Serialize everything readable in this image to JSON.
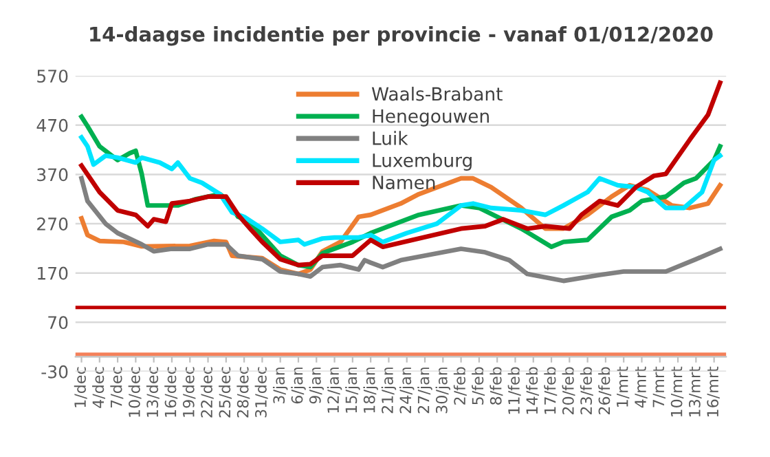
{
  "chart_data": {
    "type": "line",
    "title": "14-daagse incidentie per provincie - vanaf 01/012/2020",
    "ylim": [
      -30,
      570
    ],
    "yticks": [
      -30,
      70,
      170,
      270,
      370,
      470,
      570
    ],
    "xlim": [
      "2020-11-30",
      "2021-03-18"
    ],
    "xticks": [
      {
        "value": "2020-12-01",
        "label": "1/dec"
      },
      {
        "value": "2020-12-04",
        "label": "4/dec"
      },
      {
        "value": "2020-12-07",
        "label": "7/dec"
      },
      {
        "value": "2020-12-10",
        "label": "10/dec"
      },
      {
        "value": "2020-12-13",
        "label": "13/dec"
      },
      {
        "value": "2020-12-16",
        "label": "16/dec"
      },
      {
        "value": "2020-12-19",
        "label": "19/dec"
      },
      {
        "value": "2020-12-22",
        "label": "22/dec"
      },
      {
        "value": "2020-12-25",
        "label": "25/dec"
      },
      {
        "value": "2020-12-28",
        "label": "28/dec"
      },
      {
        "value": "2020-12-31",
        "label": "31/dec"
      },
      {
        "value": "2021-01-03",
        "label": "3/jan"
      },
      {
        "value": "2021-01-06",
        "label": "6/jan"
      },
      {
        "value": "2021-01-09",
        "label": "9/jan"
      },
      {
        "value": "2021-01-12",
        "label": "12/jan"
      },
      {
        "value": "2021-01-15",
        "label": "15/jan"
      },
      {
        "value": "2021-01-18",
        "label": "18/jan"
      },
      {
        "value": "2021-01-21",
        "label": "21/jan"
      },
      {
        "value": "2021-01-24",
        "label": "24/jan"
      },
      {
        "value": "2021-01-27",
        "label": "27/jan"
      },
      {
        "value": "2021-01-30",
        "label": "30/jan"
      },
      {
        "value": "2021-02-02",
        "label": "2/feb"
      },
      {
        "value": "2021-02-05",
        "label": "5/feb"
      },
      {
        "value": "2021-02-08",
        "label": "8/feb"
      },
      {
        "value": "2021-02-11",
        "label": "11/feb"
      },
      {
        "value": "2021-02-14",
        "label": "14/feb"
      },
      {
        "value": "2021-02-17",
        "label": "17/feb"
      },
      {
        "value": "2021-02-20",
        "label": "20/feb"
      },
      {
        "value": "2021-02-23",
        "label": "23/feb"
      },
      {
        "value": "2021-02-26",
        "label": "26/feb"
      },
      {
        "value": "2021-03-01",
        "label": "1/mrt"
      },
      {
        "value": "2021-03-04",
        "label": "4/mrt"
      },
      {
        "value": "2021-03-07",
        "label": "7/mrt"
      },
      {
        "value": "2021-03-10",
        "label": "10/mrt"
      },
      {
        "value": "2021-03-13",
        "label": "13/mrt"
      },
      {
        "value": "2021-03-16",
        "label": "16/mrt"
      }
    ],
    "grid": "y",
    "legend": "top",
    "marker": "none",
    "line_style": "solid",
    "ref_lines": [
      {
        "axis": "y",
        "value": 100,
        "color": "#c00000"
      },
      {
        "axis": "y",
        "value": 5,
        "color": "#f4805a"
      }
    ],
    "series": [
      {
        "name": "Waals-Brabant",
        "color": "#ed7d31",
        "x": [
          "2020-12-01",
          "2020-12-02",
          "2020-12-04",
          "2020-12-08",
          "2020-12-11",
          "2020-12-19",
          "2020-12-23",
          "2020-12-25",
          "2020-12-26",
          "2020-12-31",
          "2021-01-03",
          "2021-01-06",
          "2021-01-08",
          "2021-01-10",
          "2021-01-13",
          "2021-01-16",
          "2021-01-18",
          "2021-01-23",
          "2021-01-26",
          "2021-02-02",
          "2021-02-04",
          "2021-02-07",
          "2021-02-12",
          "2021-02-16",
          "2021-02-19",
          "2021-02-23",
          "2021-02-27",
          "2021-03-02",
          "2021-03-05",
          "2021-03-09",
          "2021-03-12",
          "2021-03-15",
          "2021-03-17"
        ],
        "values": [
          281,
          247,
          235,
          233,
          224,
          225,
          235,
          233,
          205,
          200,
          177,
          168,
          177,
          214,
          233,
          284,
          288,
          311,
          330,
          362,
          362,
          344,
          302,
          260,
          260,
          288,
          325,
          348,
          338,
          307,
          302,
          311,
          348
        ]
      },
      {
        "name": "Henegouwen",
        "color": "#00b050",
        "x": [
          "2020-12-01",
          "2020-12-02",
          "2020-12-04",
          "2020-12-07",
          "2020-12-09",
          "2020-12-10",
          "2020-12-11",
          "2020-12-12",
          "2020-12-17",
          "2020-12-20",
          "2020-12-24",
          "2020-12-25",
          "2020-12-27",
          "2020-12-29",
          "2021-01-03",
          "2021-01-06",
          "2021-01-08",
          "2021-01-10",
          "2021-01-15",
          "2021-01-18",
          "2021-01-26",
          "2021-02-02",
          "2021-02-05",
          "2021-02-08",
          "2021-02-12",
          "2021-02-17",
          "2021-02-19",
          "2021-02-23",
          "2021-02-27",
          "2021-03-02",
          "2021-03-04",
          "2021-03-08",
          "2021-03-11",
          "2021-03-13",
          "2021-03-16",
          "2021-03-17"
        ],
        "values": [
          487,
          468,
          427,
          399,
          413,
          418,
          371,
          307,
          307,
          320,
          330,
          320,
          284,
          274,
          205,
          186,
          182,
          210,
          233,
          251,
          288,
          307,
          302,
          284,
          260,
          223,
          233,
          237,
          284,
          297,
          316,
          325,
          353,
          362,
          399,
          427
        ]
      },
      {
        "name": "Luik",
        "color": "#808080",
        "x": [
          "2020-12-01",
          "2020-12-02",
          "2020-12-05",
          "2020-12-07",
          "2020-12-11",
          "2020-12-13",
          "2020-12-16",
          "2020-12-19",
          "2020-12-22",
          "2020-12-25",
          "2020-12-27",
          "2020-12-31",
          "2021-01-03",
          "2021-01-06",
          "2021-01-08",
          "2021-01-10",
          "2021-01-13",
          "2021-01-16",
          "2021-01-17",
          "2021-01-18",
          "2021-01-20",
          "2021-01-23",
          "2021-02-02",
          "2021-02-06",
          "2021-02-10",
          "2021-02-13",
          "2021-02-19",
          "2021-02-25",
          "2021-03-01",
          "2021-03-08",
          "2021-03-13",
          "2021-03-17"
        ],
        "values": [
          362,
          316,
          270,
          251,
          228,
          214,
          219,
          219,
          228,
          228,
          205,
          198,
          173,
          168,
          163,
          182,
          186,
          177,
          196,
          191,
          182,
          196,
          219,
          212,
          196,
          168,
          154,
          166,
          173,
          173,
          198,
          219
        ]
      },
      {
        "name": "Luxemburg",
        "color": "#00e5ff",
        "x": [
          "2020-12-01",
          "2020-12-02",
          "2020-12-03",
          "2020-12-05",
          "2020-12-07",
          "2020-12-10",
          "2020-12-11",
          "2020-12-14",
          "2020-12-16",
          "2020-12-17",
          "2020-12-19",
          "2020-12-21",
          "2020-12-24",
          "2020-12-26",
          "2020-12-28",
          "2020-12-31",
          "2021-01-03",
          "2021-01-06",
          "2021-01-07",
          "2021-01-10",
          "2021-01-12",
          "2021-01-16",
          "2021-01-18",
          "2021-01-20",
          "2021-01-24",
          "2021-01-29",
          "2021-02-02",
          "2021-02-04",
          "2021-02-07",
          "2021-02-12",
          "2021-02-16",
          "2021-02-19",
          "2021-02-23",
          "2021-02-25",
          "2021-02-28",
          "2021-03-03",
          "2021-03-05",
          "2021-03-08",
          "2021-03-11",
          "2021-03-14",
          "2021-03-16",
          "2021-03-17"
        ],
        "values": [
          445,
          427,
          390,
          408,
          404,
          394,
          404,
          394,
          381,
          394,
          362,
          353,
          330,
          293,
          284,
          260,
          233,
          237,
          228,
          240,
          242,
          242,
          247,
          233,
          251,
          270,
          307,
          311,
          302,
          297,
          288,
          307,
          334,
          362,
          348,
          344,
          334,
          302,
          302,
          334,
          399,
          408
        ]
      },
      {
        "name": "Namen",
        "color": "#c00000",
        "x": [
          "2020-12-01",
          "2020-12-04",
          "2020-12-07",
          "2020-12-10",
          "2020-12-12",
          "2020-12-13",
          "2020-12-15",
          "2020-12-16",
          "2020-12-19",
          "2020-12-22",
          "2020-12-25",
          "2020-12-27",
          "2020-12-29",
          "2020-12-31",
          "2021-01-03",
          "2021-01-06",
          "2021-01-08",
          "2021-01-10",
          "2021-01-15",
          "2021-01-18",
          "2021-01-20",
          "2021-01-26",
          "2021-02-02",
          "2021-02-06",
          "2021-02-09",
          "2021-02-13",
          "2021-02-16",
          "2021-02-20",
          "2021-02-22",
          "2021-02-25",
          "2021-02-28",
          "2021-03-03",
          "2021-03-06",
          "2021-03-08",
          "2021-03-12",
          "2021-03-15",
          "2021-03-17"
        ],
        "values": [
          388,
          334,
          297,
          288,
          265,
          279,
          274,
          311,
          316,
          325,
          325,
          288,
          260,
          233,
          198,
          186,
          188,
          205,
          205,
          237,
          223,
          240,
          260,
          265,
          279,
          260,
          265,
          260,
          288,
          316,
          307,
          344,
          367,
          371,
          441,
          491,
          556
        ]
      }
    ]
  }
}
